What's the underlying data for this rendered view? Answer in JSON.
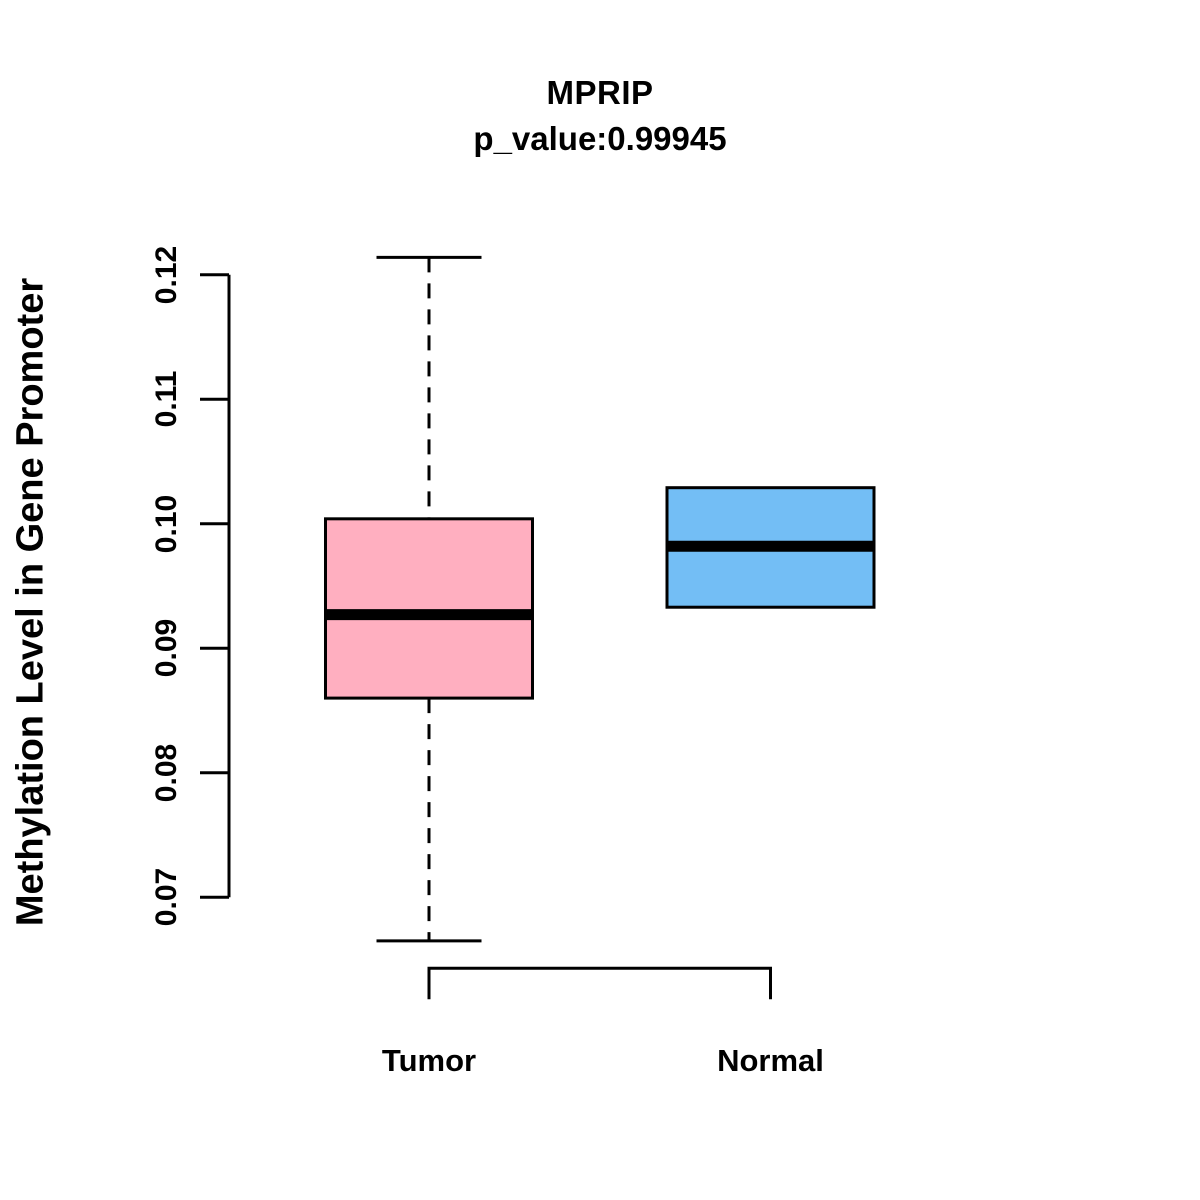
{
  "chart_data": {
    "type": "boxplot",
    "title": "MPRIP",
    "subtitle": "p_value:0.99945",
    "ylabel": "Methylation Level in Gene Promoter",
    "xlabel": "",
    "categories": [
      "Tumor",
      "Normal"
    ],
    "series": [
      {
        "name": "Tumor",
        "lower_whisker": 0.0665,
        "q1": 0.086,
        "median": 0.0927,
        "q3": 0.1004,
        "upper_whisker": 0.1214,
        "fill": "#FFAFC0",
        "whisker_style": "dashed"
      },
      {
        "name": "Normal",
        "lower_whisker": 0.0933,
        "q1": 0.0933,
        "median": 0.0982,
        "q3": 0.1029,
        "upper_whisker": 0.1029,
        "fill": "#73BEF5",
        "whisker_style": "none"
      }
    ],
    "yticks": [
      "0.07",
      "0.08",
      "0.09",
      "0.10",
      "0.11",
      "0.12"
    ],
    "ylim": [
      0.07,
      0.12
    ],
    "grid": false,
    "legend": "none",
    "line_color": "#000000",
    "background": "#FFFFFF"
  }
}
